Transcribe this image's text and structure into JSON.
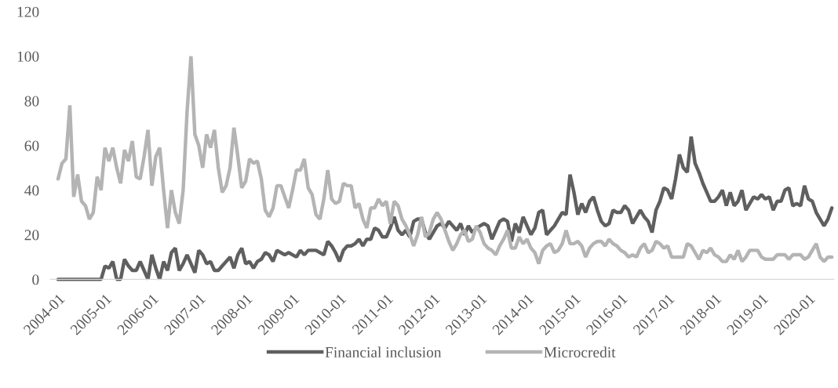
{
  "chart_data": {
    "type": "line",
    "categories": [
      "2004-01",
      null,
      null,
      null,
      null,
      null,
      null,
      null,
      null,
      null,
      null,
      null,
      "2005-01",
      null,
      null,
      null,
      null,
      null,
      null,
      null,
      null,
      null,
      null,
      null,
      "2006-01",
      null,
      null,
      null,
      null,
      null,
      null,
      null,
      null,
      null,
      null,
      null,
      "2007-01",
      null,
      null,
      null,
      null,
      null,
      null,
      null,
      null,
      null,
      null,
      null,
      "2008-01",
      null,
      null,
      null,
      null,
      null,
      null,
      null,
      null,
      null,
      null,
      null,
      "2009-01",
      null,
      null,
      null,
      null,
      null,
      null,
      null,
      null,
      null,
      null,
      null,
      "2010-01",
      null,
      null,
      null,
      null,
      null,
      null,
      null,
      null,
      null,
      null,
      null,
      "2011-01",
      null,
      null,
      null,
      null,
      null,
      null,
      null,
      null,
      null,
      null,
      null,
      "2012-01",
      null,
      null,
      null,
      null,
      null,
      null,
      null,
      null,
      null,
      null,
      null,
      "2013-01",
      null,
      null,
      null,
      null,
      null,
      null,
      null,
      null,
      null,
      null,
      null,
      "2014-01",
      null,
      null,
      null,
      null,
      null,
      null,
      null,
      null,
      null,
      null,
      null,
      "2015-01",
      null,
      null,
      null,
      null,
      null,
      null,
      null,
      null,
      null,
      null,
      null,
      "2016-01",
      null,
      null,
      null,
      null,
      null,
      null,
      null,
      null,
      null,
      null,
      null,
      "2017-01",
      null,
      null,
      null,
      null,
      null,
      null,
      null,
      null,
      null,
      null,
      null,
      "2018-01",
      null,
      null,
      null,
      null,
      null,
      null,
      null,
      null,
      null,
      null,
      null,
      "2019-01",
      null,
      null,
      null,
      null,
      null,
      null,
      null,
      null,
      null,
      null,
      null,
      "2020-01",
      null,
      null,
      null,
      null,
      null,
      null
    ],
    "series": [
      {
        "name": "Financial inclusion",
        "color": "#5f5f5f",
        "values": [
          0,
          0,
          0,
          0,
          0,
          0,
          0,
          0,
          0,
          0,
          0,
          0,
          6,
          5,
          8,
          0,
          0,
          9,
          6,
          4,
          4,
          8,
          4,
          0,
          11,
          5,
          0,
          8,
          4,
          12,
          14,
          4,
          7,
          11,
          7,
          3,
          13,
          11,
          7,
          8,
          4,
          4,
          6,
          8,
          10,
          5,
          11,
          14,
          7,
          8,
          5,
          8,
          9,
          12,
          11,
          8,
          13,
          12,
          11,
          12,
          11,
          10,
          13,
          11,
          13,
          13,
          13,
          12,
          11,
          17,
          15,
          12,
          8,
          13,
          15,
          15,
          16,
          18,
          15,
          18,
          18,
          23,
          22,
          19,
          19,
          23,
          28,
          22,
          20,
          22,
          19,
          26,
          27,
          27,
          21,
          18,
          21,
          24,
          25,
          23,
          26,
          24,
          22,
          25,
          20,
          24,
          21,
          23,
          24,
          25,
          24,
          18,
          22,
          26,
          27,
          26,
          17,
          25,
          21,
          28,
          24,
          20,
          23,
          30,
          31,
          20,
          22,
          24,
          27,
          30,
          29,
          47,
          39,
          29,
          34,
          30,
          35,
          37,
          31,
          26,
          24,
          25,
          31,
          30,
          30,
          33,
          31,
          25,
          28,
          31,
          28,
          26,
          21,
          31,
          35,
          41,
          40,
          36,
          45,
          56,
          50,
          48,
          64,
          52,
          48,
          43,
          39,
          35,
          35,
          37,
          40,
          33,
          39,
          33,
          35,
          40,
          31,
          34,
          37,
          36,
          38,
          36,
          37,
          31,
          35,
          35,
          40,
          41,
          33,
          34,
          33,
          42,
          36,
          35,
          30,
          27,
          24,
          27,
          32
        ]
      },
      {
        "name": "Microcredit",
        "color": "#b4b4b4",
        "values": [
          45,
          52,
          54,
          78,
          37,
          47,
          35,
          33,
          27,
          30,
          46,
          40,
          59,
          53,
          59,
          50,
          43,
          58,
          53,
          62,
          46,
          45,
          55,
          67,
          42,
          55,
          59,
          40,
          23,
          40,
          30,
          25,
          40,
          75,
          100,
          65,
          60,
          50,
          65,
          59,
          67,
          50,
          39,
          42,
          50,
          68,
          55,
          41,
          44,
          54,
          52,
          53,
          45,
          31,
          28,
          32,
          42,
          42,
          37,
          32,
          40,
          49,
          49,
          54,
          41,
          38,
          29,
          27,
          36,
          49,
          36,
          34,
          35,
          43,
          42,
          42,
          32,
          34,
          27,
          23,
          32,
          32,
          36,
          33,
          35,
          25,
          35,
          33,
          27,
          24,
          20,
          15,
          20,
          28,
          19,
          21,
          27,
          30,
          27,
          22,
          17,
          13,
          16,
          20,
          22,
          17,
          18,
          24,
          21,
          16,
          14,
          13,
          11,
          15,
          18,
          22,
          14,
          14,
          19,
          16,
          18,
          14,
          12,
          7,
          13,
          15,
          16,
          12,
          13,
          16,
          22,
          16,
          16,
          17,
          15,
          10,
          14,
          16,
          17,
          17,
          15,
          18,
          16,
          15,
          13,
          12,
          10,
          11,
          10,
          14,
          16,
          12,
          13,
          17,
          16,
          14,
          15,
          10,
          10,
          10,
          10,
          16,
          15,
          12,
          9,
          13,
          12,
          14,
          11,
          10,
          8,
          8,
          11,
          9,
          13,
          8,
          10,
          13,
          13,
          13,
          10,
          9,
          9,
          9,
          11,
          11,
          11,
          9,
          11,
          11,
          11,
          9,
          10,
          13,
          16,
          10,
          8,
          10,
          10
        ]
      }
    ],
    "ylim": [
      0,
      120
    ],
    "yticks": [
      0,
      20,
      40,
      60,
      80,
      100,
      120
    ],
    "grid": false,
    "legend": "bottom",
    "marker": "none",
    "line_style": "solid"
  }
}
